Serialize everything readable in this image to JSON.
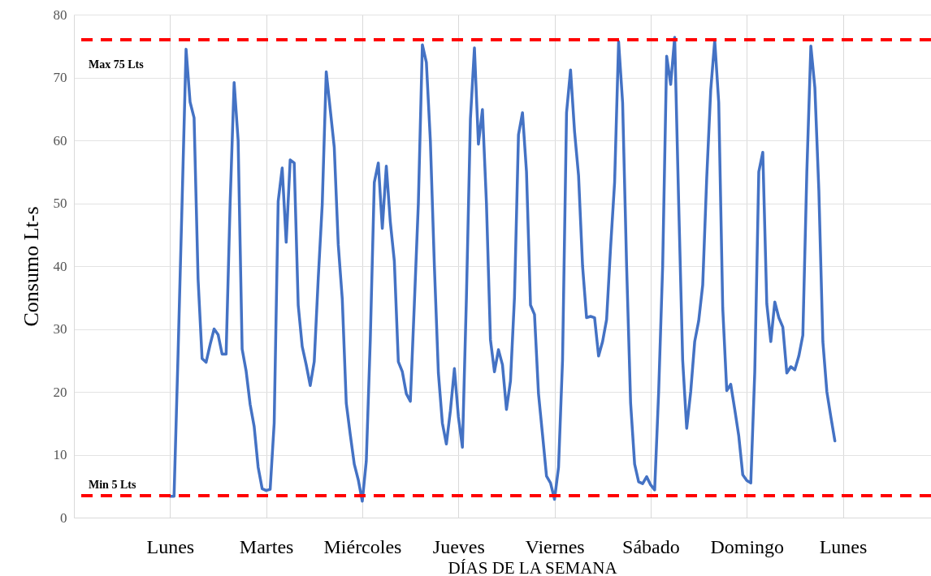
{
  "chart_data": {
    "type": "line",
    "xlabel": "DÍAS DE LA SEMANA",
    "ylabel": "Consumo Lt-s",
    "categories": [
      null,
      null,
      null,
      null,
      null,
      null,
      null,
      null,
      null,
      null,
      null,
      null,
      null,
      null,
      null,
      null,
      null,
      null,
      null,
      null,
      null,
      null,
      null,
      null,
      "Lunes",
      null,
      null,
      null,
      null,
      null,
      null,
      null,
      null,
      null,
      null,
      null,
      null,
      null,
      null,
      null,
      null,
      null,
      null,
      null,
      null,
      null,
      null,
      null,
      "Martes",
      null,
      null,
      null,
      null,
      null,
      null,
      null,
      null,
      null,
      null,
      null,
      null,
      null,
      null,
      null,
      null,
      null,
      null,
      null,
      null,
      null,
      null,
      null,
      "Miércoles",
      null,
      null,
      null,
      null,
      null,
      null,
      null,
      null,
      null,
      null,
      null,
      null,
      null,
      null,
      null,
      null,
      null,
      null,
      null,
      null,
      null,
      null,
      null,
      "Jueves",
      null,
      null,
      null,
      null,
      null,
      null,
      null,
      null,
      null,
      null,
      null,
      null,
      null,
      null,
      null,
      null,
      null,
      null,
      null,
      null,
      null,
      null,
      null,
      "Viernes",
      null,
      null,
      null,
      null,
      null,
      null,
      null,
      null,
      null,
      null,
      null,
      null,
      null,
      null,
      null,
      null,
      null,
      null,
      null,
      null,
      null,
      null,
      null,
      "Sábado",
      null,
      null,
      null,
      null,
      null,
      null,
      null,
      null,
      null,
      null,
      null,
      null,
      null,
      null,
      null,
      null,
      null,
      null,
      null,
      null,
      null,
      null,
      null,
      "Domingo",
      null,
      null,
      null,
      null,
      null,
      null,
      null,
      null,
      null,
      null,
      null,
      null,
      null,
      null,
      null,
      null,
      null,
      null,
      null,
      null,
      null,
      null,
      null,
      "Lunes",
      null,
      null,
      null,
      null,
      null,
      null,
      null,
      null,
      null,
      null,
      null,
      null,
      null,
      null,
      null,
      null,
      null,
      null,
      null,
      null,
      null,
      null
    ],
    "ylim": [
      0,
      80
    ],
    "yticks": [
      0,
      10,
      20,
      30,
      40,
      50,
      60,
      70,
      80
    ],
    "grid": true,
    "line_style": "solid",
    "ref_lines": [
      {
        "axis": "y",
        "value": 76,
        "label": "Max 75 Lts",
        "color": "#ff0000",
        "line_style": "dashed"
      },
      {
        "axis": "y",
        "value": 3.5,
        "label": "Min 5 Lts",
        "color": "#ff0000",
        "line_style": "dashed"
      }
    ],
    "series": [
      {
        "color": "#4472c4",
        "values": [
          null,
          null,
          null,
          null,
          null,
          null,
          null,
          null,
          null,
          null,
          null,
          null,
          null,
          null,
          null,
          null,
          null,
          null,
          null,
          null,
          null,
          null,
          null,
          null,
          3.4,
          3.4,
          26,
          50,
          74.5,
          66.1,
          63.6,
          37.9,
          25.3,
          24.7,
          27.5,
          30,
          29.1,
          26,
          26,
          50,
          69.2,
          60,
          26.8,
          23.3,
          18,
          14.5,
          8,
          4.6,
          4.3,
          4.5,
          15,
          50.3,
          55.6,
          43.8,
          56.9,
          56.4,
          33.8,
          27.2,
          24.3,
          21,
          24.8,
          38,
          49.8,
          70.9,
          64.9,
          58.9,
          43.4,
          34.8,
          18.2,
          13.2,
          8.5,
          6,
          2.6,
          9,
          28.3,
          53.3,
          56.4,
          46,
          55.9,
          47,
          40.8,
          24.8,
          23.2,
          19.7,
          18.5,
          34,
          50,
          75.2,
          72.4,
          59.9,
          40,
          23,
          15,
          11.7,
          17,
          23.7,
          16,
          11.2,
          35,
          63.4,
          74.7,
          59.4,
          64.9,
          50,
          28.3,
          23.2,
          26.7,
          24.3,
          17.2,
          21.7,
          35,
          60.9,
          64.4,
          55,
          33.8,
          32.3,
          19.7,
          13.2,
          6.6,
          5.5,
          2.9,
          8,
          25,
          64.4,
          71.2,
          61.4,
          54.4,
          40,
          31.8,
          32,
          31.8,
          25.7,
          28,
          31.5,
          43,
          53.3,
          75.7,
          66,
          40,
          18.2,
          8.5,
          5.7,
          5.4,
          6.5,
          5.2,
          4.4,
          20,
          40,
          73.4,
          68.9,
          76.4,
          50,
          25,
          14.2,
          20,
          28,
          31.3,
          37,
          54,
          68,
          75.9,
          66,
          33.3,
          20.2,
          21.2,
          17.2,
          13,
          6.8,
          5.9,
          5.5,
          23.2,
          55,
          58.1,
          34,
          28,
          34.3,
          31.8,
          30.3,
          23,
          24,
          23.5,
          25.7,
          29,
          55,
          75,
          68.4,
          52,
          28,
          20,
          16,
          12.2,
          null,
          null,
          null,
          null,
          null,
          null,
          null,
          null,
          null,
          null,
          null,
          null,
          null,
          null,
          null,
          null,
          null,
          null,
          null,
          null,
          null,
          null,
          null,
          null
        ]
      }
    ]
  }
}
